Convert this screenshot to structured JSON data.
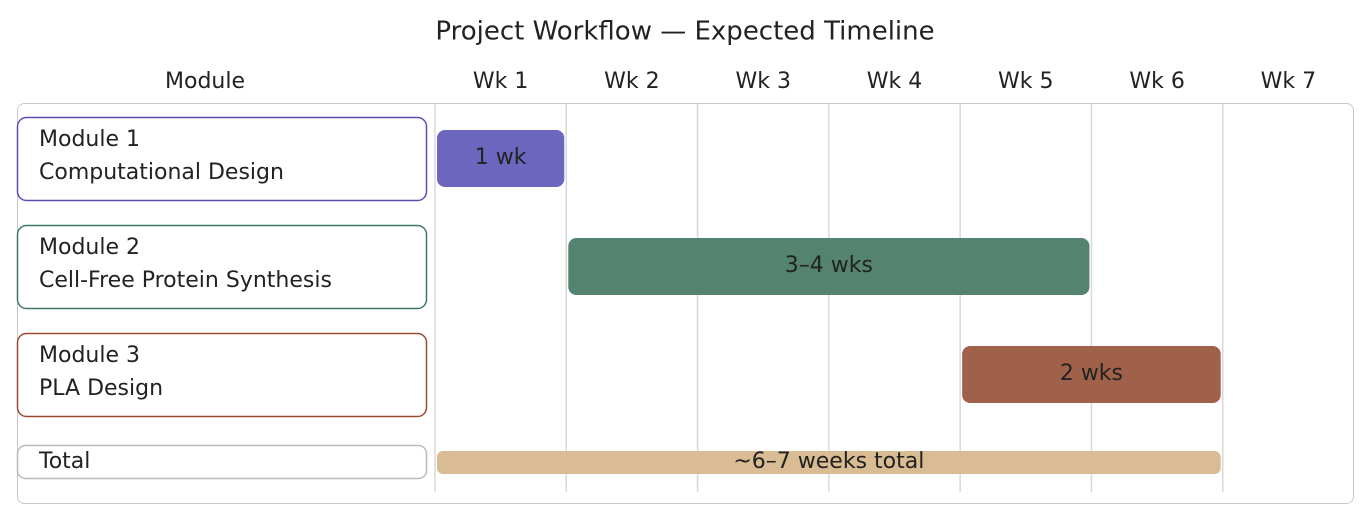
{
  "chart_data": {
    "type": "gantt",
    "title": "Project Workflow — Expected Timeline",
    "header": "Module",
    "weeks": [
      "Wk 1",
      "Wk 2",
      "Wk 3",
      "Wk 4",
      "Wk 5",
      "Wk 6",
      "Wk 7"
    ],
    "xlim": [
      0,
      7
    ],
    "tasks": [
      {
        "name": "Module 1",
        "subtitle": "Computational Design",
        "color": "#6c66be",
        "border": "#5b4fb5",
        "start": 0,
        "end": 1,
        "label": "1 wk"
      },
      {
        "name": "Module 2",
        "subtitle": "Cell-Free Protein Synthesis",
        "color": "#54836f",
        "border": "#3f7a60",
        "start": 1,
        "end": 5,
        "label": "3–4 wks"
      },
      {
        "name": "Module 3",
        "subtitle": "PLA Design",
        "color": "#a0614a",
        "border": "#9a4a30",
        "start": 4,
        "end": 6,
        "label": "2 wks"
      }
    ],
    "total": {
      "name": "Total",
      "color": "#d9bc93",
      "border": "#bbbbbb",
      "start": 0,
      "end": 6,
      "label": "~6–7 weeks total"
    }
  }
}
